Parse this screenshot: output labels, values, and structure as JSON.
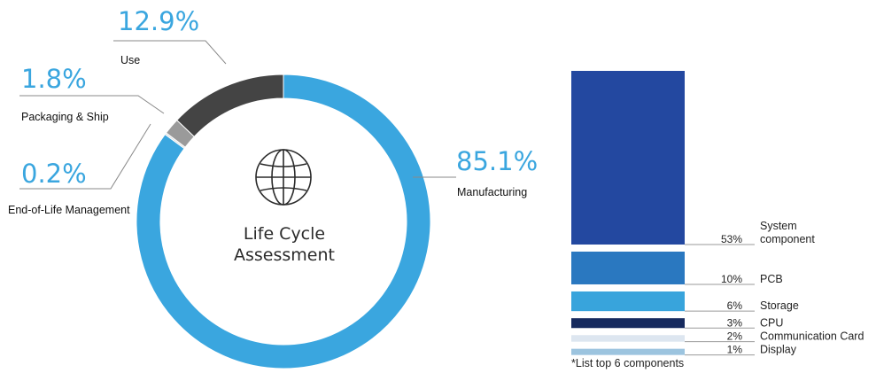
{
  "colors": {
    "manufacturing": "#3aa6df",
    "use": "#444444",
    "packaging": "#9a9a9a",
    "eol": "#dcdcdc",
    "percent_text": "#3aa6df",
    "bar_system": "#2348a0",
    "bar_pcb": "#2a78c0",
    "bar_storage": "#38a4dc",
    "bar_cpu": "#162a5e",
    "bar_comm": "#dde6f0",
    "bar_display": "#9cc4df"
  },
  "icons": {
    "center": "globe-icon"
  },
  "chart_data": [
    {
      "type": "pie",
      "style": "donut",
      "center_label": [
        "Life Cycle",
        "Assessment"
      ],
      "slices": [
        {
          "label": "Manufacturing",
          "value": 85.1,
          "value_label": "85.1%"
        },
        {
          "label": "End-of-Life Management",
          "value": 0.2,
          "value_label": "0.2%"
        },
        {
          "label": "Packaging & Ship",
          "value": 1.8,
          "value_label": "1.8%"
        },
        {
          "label": "Use",
          "value": 12.9,
          "value_label": "12.9%"
        }
      ]
    },
    {
      "type": "bar",
      "orientation": "stacked-column",
      "categories": [
        "System component",
        "PCB",
        "Storage",
        "CPU",
        "Communication Card",
        "Display"
      ],
      "values": [
        53,
        10,
        6,
        3,
        2,
        1
      ],
      "value_labels": [
        "53%",
        "10%",
        "6%",
        "3%",
        "2%",
        "1%"
      ],
      "label_lines": [
        [
          "System",
          "component"
        ],
        [
          "PCB"
        ],
        [
          "Storage"
        ],
        [
          "CPU"
        ],
        [
          "Communication Card"
        ],
        [
          "Display"
        ]
      ],
      "footnote": "*List top 6 components"
    }
  ]
}
